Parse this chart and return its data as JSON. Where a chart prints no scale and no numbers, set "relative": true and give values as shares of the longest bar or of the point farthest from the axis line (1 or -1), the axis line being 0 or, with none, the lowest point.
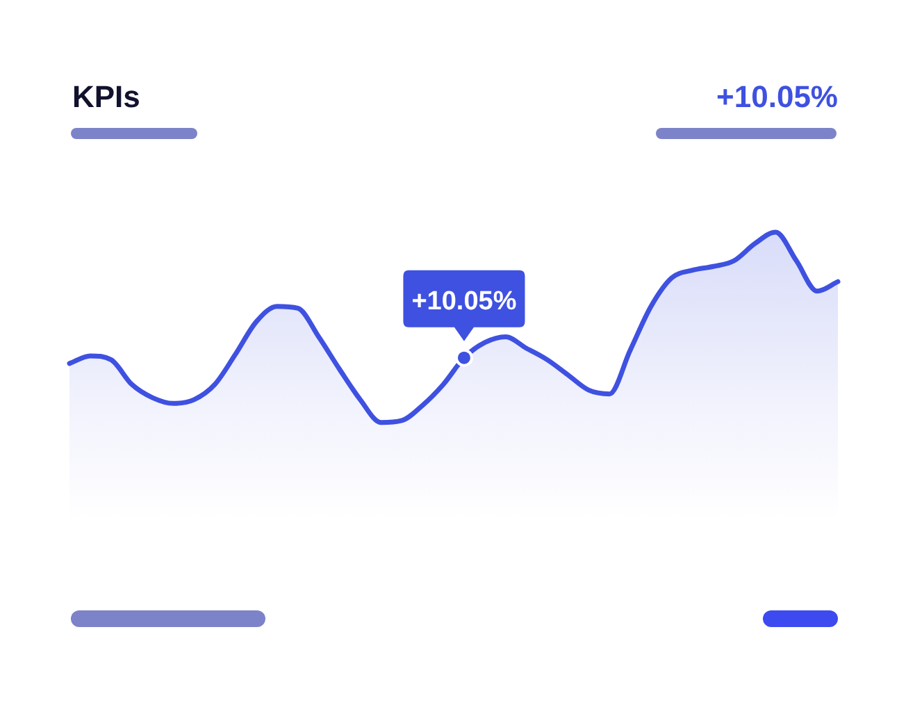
{
  "chart_data": {
    "type": "area",
    "title": "KPIs",
    "relative": true,
    "legend": false,
    "categories": [
      null,
      null,
      null,
      null,
      null,
      null,
      null,
      null,
      null,
      null,
      null,
      null,
      null,
      null,
      null,
      null,
      null,
      null,
      null,
      null,
      null,
      null,
      null,
      null,
      null,
      null,
      null,
      null,
      null,
      null,
      null,
      null,
      null,
      null,
      null,
      null,
      null,
      null
    ],
    "series": [
      {
        "color": "#3f51e0",
        "values": [
          0.31,
          0.35,
          0.33,
          0.2,
          0.13,
          0.1,
          0.12,
          0.2,
          0.36,
          0.53,
          0.61,
          0.6,
          0.45,
          0.28,
          0.12,
          0,
          0.01,
          0.09,
          0.2,
          0.34,
          0.42,
          0.45,
          0.39,
          0.33,
          0.25,
          0.17,
          0.15,
          0.38,
          0.61,
          0.76,
          0.8,
          0.82,
          0.85,
          0.94,
          1,
          0.85,
          0.69,
          0.74
        ]
      }
    ],
    "annotations": [
      "+10.05%",
      {
        "text": "+10.05%",
        "y": 0.34
      }
    ]
  }
}
